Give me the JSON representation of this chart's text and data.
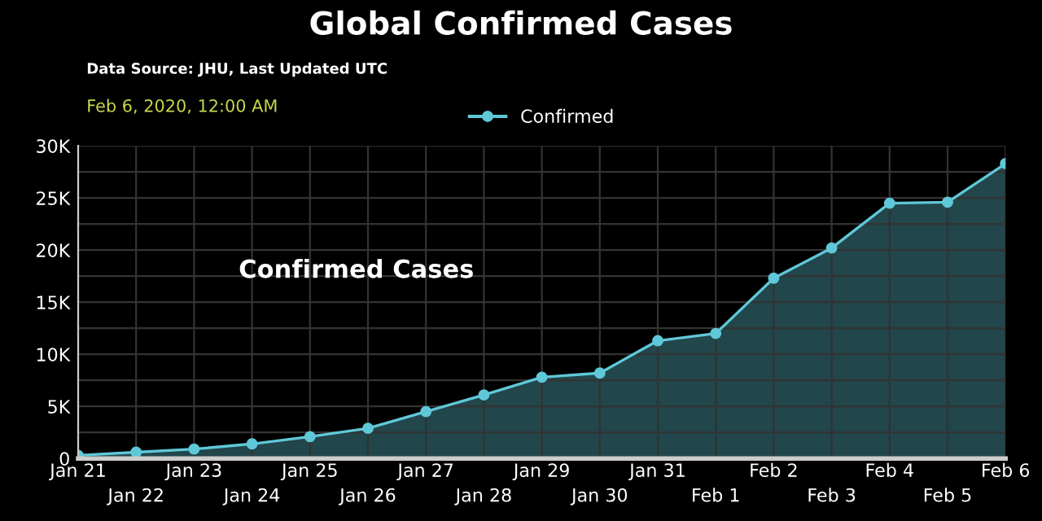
{
  "chart_data": {
    "type": "area",
    "title": "Global Confirmed Cases",
    "subtitle": "Data Source: JHU, Last Updated UTC",
    "annotations": [
      "Feb 6, 2020, 12:00 AM",
      "Confirmed Cases"
    ],
    "categories": [
      "Jan 21",
      "Jan 22",
      "Jan 23",
      "Jan 24",
      "Jan 25",
      "Jan 26",
      "Jan 27",
      "Jan 28",
      "Jan 29",
      "Jan 30",
      "Jan 31",
      "Feb 1",
      "Feb 2",
      "Feb 3",
      "Feb 4",
      "Feb 5",
      "Feb 6"
    ],
    "series": [
      {
        "name": "Confirmed",
        "color": "#5fc8d8",
        "values": [
          300,
          600,
          900,
          1400,
          2100,
          2900,
          4500,
          6100,
          7800,
          8200,
          11300,
          12000,
          17300,
          20200,
          24500,
          24600,
          28300
        ]
      }
    ],
    "ylim": [
      0,
      30000
    ],
    "yticks": [
      {
        "value": 0,
        "label": "0"
      },
      {
        "value": 2500,
        "label": null
      },
      {
        "value": 5000,
        "label": "5K"
      },
      {
        "value": 7500,
        "label": null
      },
      {
        "value": 10000,
        "label": "10K"
      },
      {
        "value": 12500,
        "label": null
      },
      {
        "value": 15000,
        "label": "15K"
      },
      {
        "value": 17500,
        "label": null
      },
      {
        "value": 20000,
        "label": "20K"
      },
      {
        "value": 22500,
        "label": null
      },
      {
        "value": 25000,
        "label": "25K"
      },
      {
        "value": 27500,
        "label": null
      },
      {
        "value": 30000,
        "label": "30K"
      }
    ],
    "grid": true,
    "legend": "top",
    "marker": "circle",
    "line_style": "solid"
  }
}
